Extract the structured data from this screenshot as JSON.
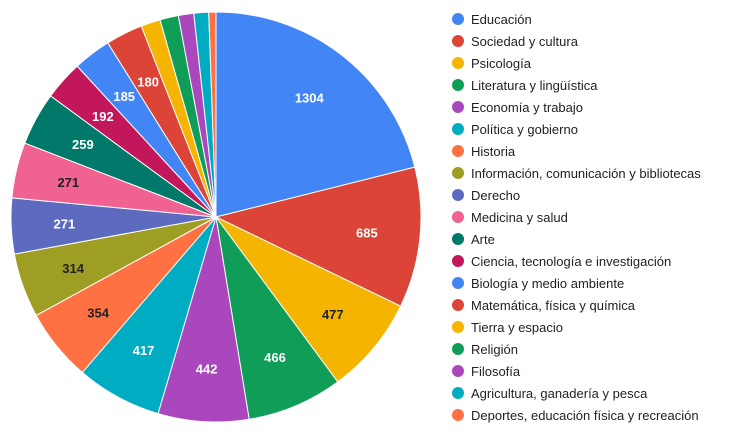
{
  "chart_data": {
    "type": "pie",
    "title": "",
    "legend_position": "right",
    "slices": [
      {
        "label": "Educación",
        "value": 1304,
        "color": "#4285f4",
        "label_color": "#ffffff"
      },
      {
        "label": "Sociedad y cultura",
        "value": 685,
        "color": "#db4437",
        "label_color": "#ffffff"
      },
      {
        "label": "Psicología",
        "value": 477,
        "color": "#f4b400",
        "label_color": "#222222"
      },
      {
        "label": "Literatura y lingüística",
        "value": 466,
        "color": "#0f9d58",
        "label_color": "#ffffff"
      },
      {
        "label": "Economía y trabajo",
        "value": 442,
        "color": "#ab47bc",
        "label_color": "#ffffff"
      },
      {
        "label": "Política y gobierno",
        "value": 417,
        "color": "#00acc1",
        "label_color": "#ffffff"
      },
      {
        "label": "Historia",
        "value": 354,
        "color": "#ff7043",
        "label_color": "#222222"
      },
      {
        "label": "Información, comunicación y bibliotecas",
        "value": 314,
        "color": "#9e9d24",
        "label_color": "#222222"
      },
      {
        "label": "Derecho",
        "value": 271,
        "color": "#5c6bc0",
        "label_color": "#ffffff"
      },
      {
        "label": "Medicina y salud",
        "value": 271,
        "color": "#f06292",
        "label_color": "#222222"
      },
      {
        "label": "Arte",
        "value": 259,
        "color": "#00796b",
        "label_color": "#ffffff"
      },
      {
        "label": "Ciencia, tecnología e investigación",
        "value": 192,
        "color": "#c2185b",
        "label_color": "#ffffff"
      },
      {
        "label": "Biología y medio ambiente",
        "value": 185,
        "color": "#4285f4",
        "label_color": "#ffffff"
      },
      {
        "label": "Matemática, física y química",
        "value": 180,
        "color": "#db4437",
        "label_color": "#ffffff"
      },
      {
        "label": "Tierra y espacio",
        "value": 95,
        "color": "#f4b400",
        "label_color": ""
      },
      {
        "label": "Religión",
        "value": 90,
        "color": "#0f9d58",
        "label_color": ""
      },
      {
        "label": "Filosofía",
        "value": 75,
        "color": "#ab47bc",
        "label_color": ""
      },
      {
        "label": "Agricultura, ganadería y pesca",
        "value": 72,
        "color": "#00acc1",
        "label_color": ""
      },
      {
        "label": "Deportes, educación física y recreación",
        "value": 35,
        "color": "#ff7043",
        "label_color": ""
      }
    ],
    "show_value_labels_min": 150
  }
}
